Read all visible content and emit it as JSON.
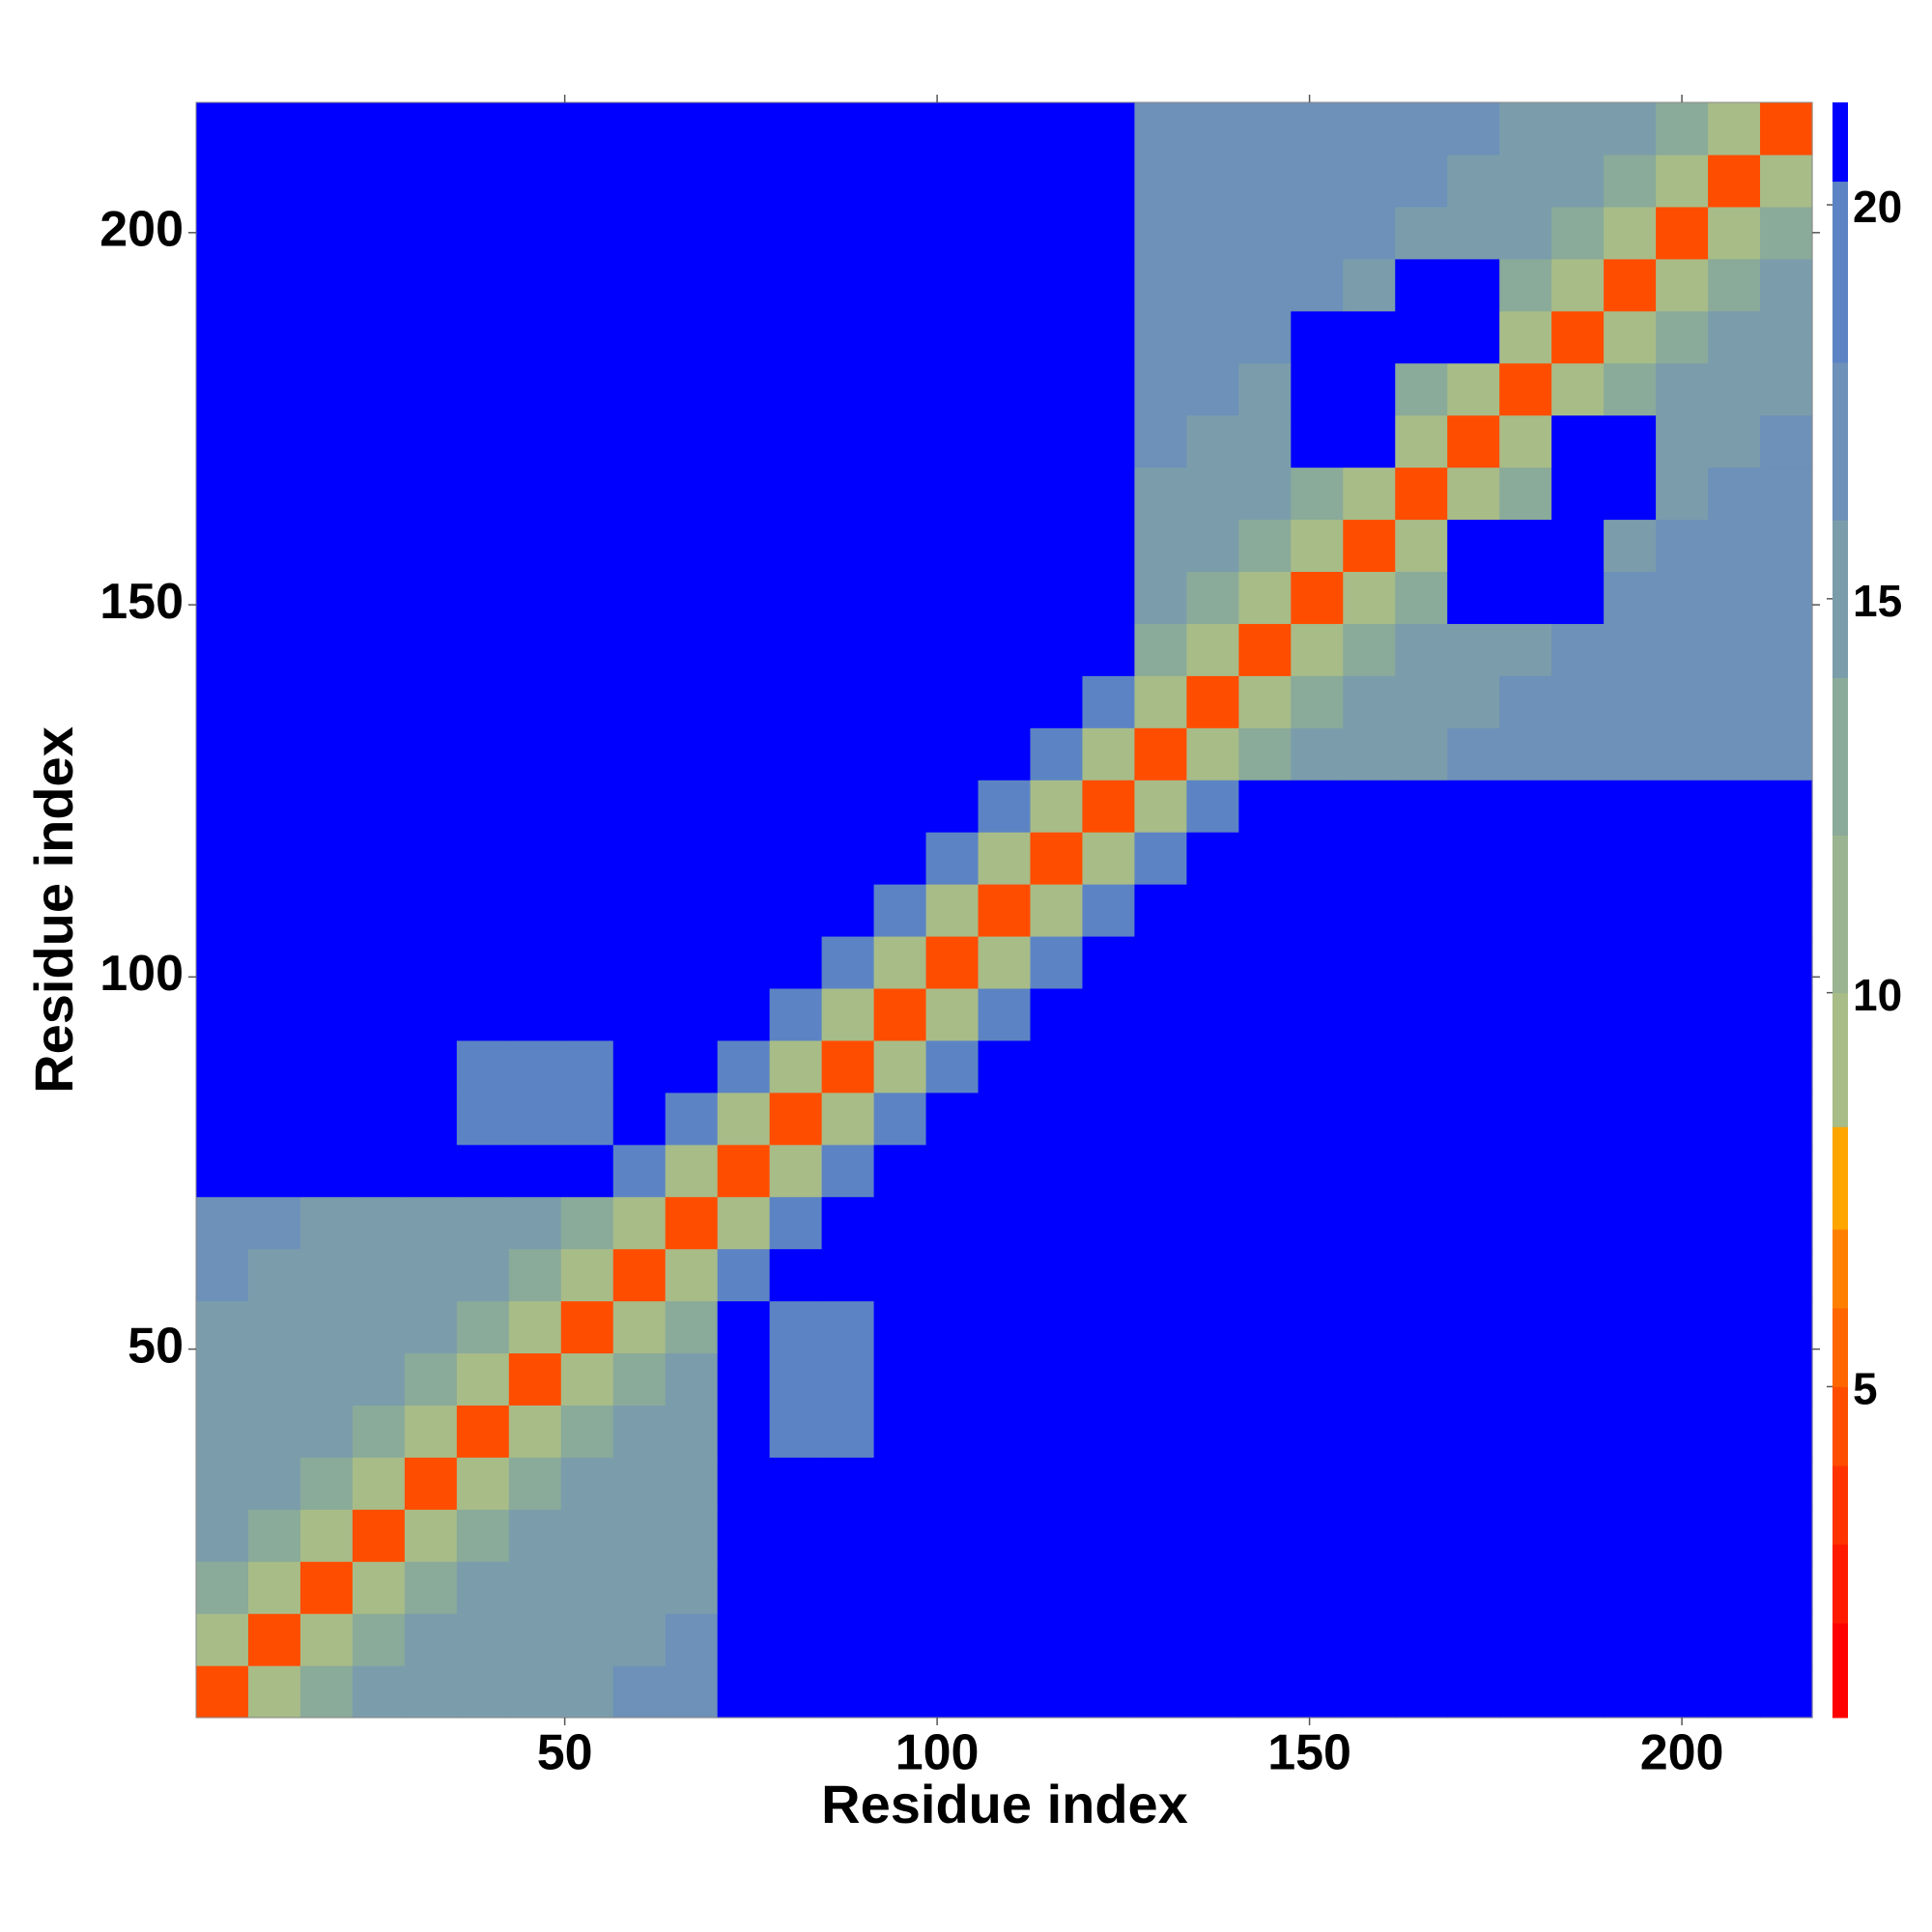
{
  "chart_data": {
    "type": "heatmap",
    "xlabel": "Residue index",
    "ylabel": "Residue index",
    "xlim": [
      0.5,
      217.5
    ],
    "ylim": [
      0.5,
      217.5
    ],
    "xticks": [
      50,
      100,
      150,
      200
    ],
    "yticks": [
      50,
      100,
      150,
      200
    ],
    "xbins": [
      0.5,
      7.5,
      14.5,
      21.5,
      28.5,
      35.5,
      42.5,
      49.5,
      56.5,
      63.5,
      70.5,
      77.5,
      84.5,
      91.5,
      98.5,
      105.5,
      112.5,
      119.5,
      126.5,
      133.5,
      140.5,
      147.5,
      154.5,
      161.5,
      168.5,
      175.5,
      182.5,
      189.5,
      196.5,
      203.5,
      210.5,
      217.5
    ],
    "ybins": [
      0.5,
      7.5,
      14.5,
      21.5,
      28.5,
      35.5,
      42.5,
      49.5,
      56.5,
      63.5,
      70.5,
      77.5,
      84.5,
      91.5,
      98.5,
      105.5,
      112.5,
      119.5,
      126.5,
      133.5,
      140.5,
      147.5,
      154.5,
      161.5,
      168.5,
      175.5,
      182.5,
      189.5,
      196.5,
      203.5,
      210.5,
      217.5
    ],
    "values": [
      [
        4,
        9,
        12,
        14,
        14,
        14,
        14,
        14,
        17,
        17,
        21,
        21,
        21,
        21,
        21,
        21,
        21,
        21,
        21,
        21,
        21,
        21,
        21,
        21,
        21,
        21,
        21,
        21,
        21,
        21,
        21
      ],
      [
        9,
        4,
        9,
        12,
        14,
        14,
        14,
        14,
        14,
        17,
        21,
        21,
        21,
        21,
        21,
        21,
        21,
        21,
        21,
        21,
        21,
        21,
        21,
        21,
        21,
        21,
        21,
        21,
        21,
        21,
        21
      ],
      [
        12,
        9,
        4,
        9,
        12,
        14,
        14,
        14,
        14,
        14,
        21,
        21,
        21,
        21,
        21,
        21,
        21,
        21,
        21,
        21,
        21,
        21,
        21,
        21,
        21,
        21,
        21,
        21,
        21,
        21,
        21
      ],
      [
        14,
        12,
        9,
        4,
        9,
        12,
        14,
        14,
        14,
        14,
        21,
        21,
        21,
        21,
        21,
        21,
        21,
        21,
        21,
        21,
        21,
        21,
        21,
        21,
        21,
        21,
        21,
        21,
        21,
        21,
        21
      ],
      [
        14,
        14,
        12,
        9,
        4,
        9,
        12,
        14,
        14,
        14,
        21,
        21,
        21,
        21,
        21,
        21,
        21,
        21,
        21,
        21,
        21,
        21,
        21,
        21,
        21,
        21,
        21,
        21,
        21,
        21,
        21
      ],
      [
        14,
        14,
        14,
        12,
        9,
        4,
        9,
        12,
        14,
        14,
        21,
        19,
        19,
        21,
        21,
        21,
        21,
        21,
        21,
        21,
        21,
        21,
        21,
        21,
        21,
        21,
        21,
        21,
        21,
        21,
        21
      ],
      [
        14,
        14,
        14,
        14,
        12,
        9,
        4,
        9,
        12,
        14,
        21,
        19,
        19,
        21,
        21,
        21,
        21,
        21,
        21,
        21,
        21,
        21,
        21,
        21,
        21,
        21,
        21,
        21,
        21,
        21,
        21
      ],
      [
        14,
        14,
        14,
        14,
        14,
        12,
        9,
        4,
        9,
        12,
        21,
        19,
        19,
        21,
        21,
        21,
        21,
        21,
        21,
        21,
        21,
        21,
        21,
        21,
        21,
        21,
        21,
        21,
        21,
        21,
        21
      ],
      [
        17,
        14,
        14,
        14,
        14,
        14,
        12,
        9,
        4,
        9,
        18,
        21,
        21,
        21,
        21,
        21,
        21,
        21,
        21,
        21,
        21,
        21,
        21,
        21,
        21,
        21,
        21,
        21,
        21,
        21,
        21
      ],
      [
        17,
        17,
        14,
        14,
        14,
        14,
        14,
        12,
        9,
        4,
        9,
        18,
        21,
        21,
        21,
        21,
        21,
        21,
        21,
        21,
        21,
        21,
        21,
        21,
        21,
        21,
        21,
        21,
        21,
        21,
        21
      ],
      [
        21,
        21,
        21,
        21,
        21,
        21,
        21,
        21,
        18,
        9,
        4,
        9,
        18,
        21,
        21,
        21,
        21,
        21,
        21,
        21,
        21,
        21,
        21,
        21,
        21,
        21,
        21,
        21,
        21,
        21,
        21
      ],
      [
        21,
        21,
        21,
        21,
        21,
        19,
        19,
        19,
        21,
        18,
        9,
        4,
        9,
        18,
        21,
        21,
        21,
        21,
        21,
        21,
        21,
        21,
        21,
        21,
        21,
        21,
        21,
        21,
        21,
        21,
        21
      ],
      [
        21,
        21,
        21,
        21,
        21,
        19,
        19,
        19,
        21,
        21,
        18,
        9,
        4,
        9,
        18,
        21,
        21,
        21,
        21,
        21,
        21,
        21,
        21,
        21,
        21,
        21,
        21,
        21,
        21,
        21,
        21
      ],
      [
        21,
        21,
        21,
        21,
        21,
        21,
        21,
        21,
        21,
        21,
        21,
        18,
        9,
        4,
        9,
        18,
        21,
        21,
        21,
        21,
        21,
        21,
        21,
        21,
        21,
        21,
        21,
        21,
        21,
        21,
        21
      ],
      [
        21,
        21,
        21,
        21,
        21,
        21,
        21,
        21,
        21,
        21,
        21,
        21,
        18,
        9,
        4,
        9,
        18,
        21,
        21,
        21,
        21,
        21,
        21,
        21,
        21,
        21,
        21,
        21,
        21,
        21,
        21
      ],
      [
        21,
        21,
        21,
        21,
        21,
        21,
        21,
        21,
        21,
        21,
        21,
        21,
        21,
        18,
        9,
        4,
        9,
        18,
        21,
        21,
        21,
        21,
        21,
        21,
        21,
        21,
        21,
        21,
        21,
        21,
        21
      ],
      [
        21,
        21,
        21,
        21,
        21,
        21,
        21,
        21,
        21,
        21,
        21,
        21,
        21,
        21,
        18,
        9,
        4,
        9,
        18,
        21,
        21,
        21,
        21,
        21,
        21,
        21,
        21,
        21,
        21,
        21,
        21
      ],
      [
        21,
        21,
        21,
        21,
        21,
        21,
        21,
        21,
        21,
        21,
        21,
        21,
        21,
        21,
        21,
        18,
        9,
        4,
        9,
        18,
        21,
        21,
        21,
        21,
        21,
        21,
        21,
        21,
        21,
        21,
        21
      ],
      [
        21,
        21,
        21,
        21,
        21,
        21,
        21,
        21,
        21,
        21,
        21,
        21,
        21,
        21,
        21,
        21,
        18,
        9,
        4,
        9,
        13,
        15,
        15,
        15,
        16,
        16,
        16,
        16,
        16,
        16,
        16
      ],
      [
        21,
        21,
        21,
        21,
        21,
        21,
        21,
        21,
        21,
        21,
        21,
        21,
        21,
        21,
        21,
        21,
        21,
        18,
        9,
        4,
        9,
        13,
        15,
        15,
        15,
        16,
        16,
        16,
        16,
        16,
        16
      ],
      [
        21,
        21,
        21,
        21,
        21,
        21,
        21,
        21,
        21,
        21,
        21,
        21,
        21,
        21,
        21,
        21,
        21,
        21,
        13,
        9,
        4,
        9,
        13,
        15,
        15,
        15,
        16,
        16,
        16,
        16,
        16
      ],
      [
        21,
        21,
        21,
        21,
        21,
        21,
        21,
        21,
        21,
        21,
        21,
        21,
        21,
        21,
        21,
        21,
        21,
        21,
        15,
        13,
        9,
        4,
        9,
        13,
        21,
        21,
        21,
        16,
        16,
        16,
        16
      ],
      [
        21,
        21,
        21,
        21,
        21,
        21,
        21,
        21,
        21,
        21,
        21,
        21,
        21,
        21,
        21,
        21,
        21,
        21,
        15,
        15,
        13,
        9,
        4,
        9,
        21,
        21,
        21,
        15,
        16,
        16,
        16
      ],
      [
        21,
        21,
        21,
        21,
        21,
        21,
        21,
        21,
        21,
        21,
        21,
        21,
        21,
        21,
        21,
        21,
        21,
        21,
        15,
        15,
        15,
        13,
        9,
        4,
        9,
        13,
        21,
        21,
        15,
        16,
        16
      ],
      [
        21,
        21,
        21,
        21,
        21,
        21,
        21,
        21,
        21,
        21,
        21,
        21,
        21,
        21,
        21,
        21,
        21,
        21,
        16,
        15,
        15,
        21,
        21,
        9,
        4,
        9,
        21,
        21,
        15,
        15,
        16
      ],
      [
        21,
        21,
        21,
        21,
        21,
        21,
        21,
        21,
        21,
        21,
        21,
        21,
        21,
        21,
        21,
        21,
        21,
        21,
        16,
        16,
        15,
        21,
        21,
        13,
        9,
        4,
        9,
        13,
        15,
        15,
        15
      ],
      [
        21,
        21,
        21,
        21,
        21,
        21,
        21,
        21,
        21,
        21,
        21,
        21,
        21,
        21,
        21,
        21,
        21,
        21,
        16,
        16,
        16,
        21,
        21,
        21,
        21,
        9,
        4,
        9,
        13,
        15,
        15
      ],
      [
        21,
        21,
        21,
        21,
        21,
        21,
        21,
        21,
        21,
        21,
        21,
        21,
        21,
        21,
        21,
        21,
        21,
        21,
        16,
        16,
        16,
        16,
        15,
        21,
        21,
        13,
        9,
        4,
        9,
        13,
        15
      ],
      [
        21,
        21,
        21,
        21,
        21,
        21,
        21,
        21,
        21,
        21,
        21,
        21,
        21,
        21,
        21,
        21,
        21,
        21,
        16,
        16,
        16,
        16,
        16,
        15,
        15,
        15,
        13,
        9,
        4,
        9,
        13
      ],
      [
        21,
        21,
        21,
        21,
        21,
        21,
        21,
        21,
        21,
        21,
        21,
        21,
        21,
        21,
        21,
        21,
        21,
        21,
        16,
        16,
        16,
        16,
        16,
        16,
        15,
        15,
        15,
        13,
        9,
        4,
        9
      ],
      [
        21,
        21,
        21,
        21,
        21,
        21,
        21,
        21,
        21,
        21,
        21,
        21,
        21,
        21,
        21,
        21,
        21,
        21,
        16,
        16,
        16,
        16,
        16,
        16,
        16,
        15,
        15,
        15,
        13,
        9,
        4
      ]
    ],
    "colorbar": {
      "lim": [
        0.8,
        21.3
      ],
      "ticks": [
        5,
        10,
        15,
        20
      ],
      "levels": [
        0.8,
        2,
        3,
        4,
        5,
        6,
        7,
        8.3,
        10,
        12,
        14,
        16,
        18,
        20.3,
        21.3
      ],
      "colors": [
        "#ff0000",
        "#ff1a00",
        "#ff3300",
        "#ff4d00",
        "#ff6600",
        "#ff8000",
        "#ffa500",
        "#a8bc88",
        "#9ab491",
        "#8aaa9a",
        "#7b9dab",
        "#6d91b8",
        "#5c84c4",
        "#0000ff"
      ]
    }
  }
}
